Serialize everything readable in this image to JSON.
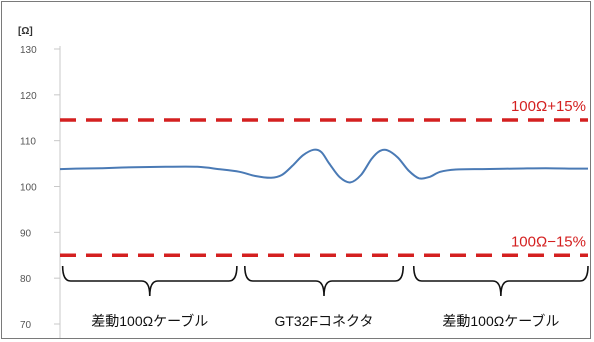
{
  "chart_data": {
    "type": "line",
    "ylabel": "[Ω]",
    "ylim": [
      70,
      130
    ],
    "yticks": [
      "130",
      "120",
      "110",
      "100",
      "90",
      "80",
      "70"
    ],
    "xlim": [
      0,
      100
    ],
    "grid": false,
    "series": [
      {
        "color": "#4a7ab5",
        "x": [
          0,
          3,
          8,
          14,
          20,
          26,
          30,
          34,
          37,
          40,
          42,
          44,
          46,
          48,
          49.5,
          51,
          53,
          55,
          57,
          59,
          60.5,
          62,
          64,
          66,
          68,
          70,
          72,
          75,
          80,
          86,
          92,
          97,
          100
        ],
        "y": [
          103.8,
          103.9,
          104.0,
          104.2,
          104.3,
          104.3,
          103.8,
          103.2,
          102.3,
          101.9,
          102.5,
          104.5,
          106.8,
          108.0,
          107.5,
          105.0,
          102.0,
          100.9,
          102.5,
          106.0,
          107.7,
          107.9,
          106.3,
          103.5,
          101.8,
          102.1,
          103.2,
          103.7,
          103.8,
          103.9,
          104.0,
          103.9,
          103.9
        ]
      }
    ],
    "limits": [
      {
        "value": 114.5,
        "label": "100Ω+15%",
        "color": "#d42020"
      },
      {
        "value": 85.0,
        "label": "100Ω−15%",
        "color": "#d42020"
      }
    ],
    "segments": [
      {
        "label": "差動100Ωケーブル",
        "x_start": 0.5,
        "x_end": 33.5
      },
      {
        "label": "GT32Fコネクタ",
        "x_start": 35,
        "x_end": 65
      },
      {
        "label": "差動100Ωケーブル",
        "x_start": 67,
        "x_end": 100
      }
    ]
  }
}
